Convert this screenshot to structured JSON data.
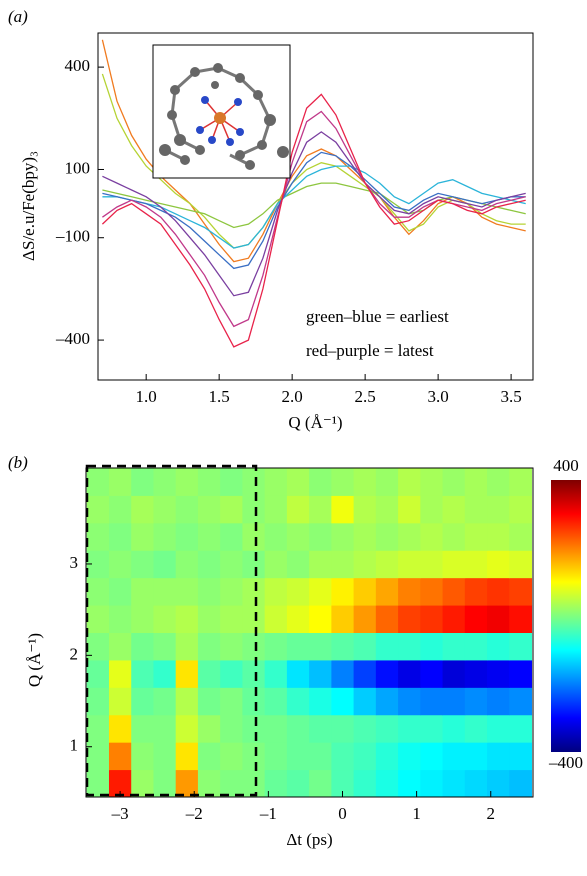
{
  "chart_data": [
    {
      "type": "line",
      "panel_label": "(a)",
      "ylabel": "ΔS/e.u/Fe(bpy)₃",
      "xlabel": "Q (Å⁻¹)",
      "annotations": [
        "green–blue = earliest",
        "red–purple = latest"
      ],
      "xlim": [
        0.67,
        3.65
      ],
      "ylim": [
        -517,
        500
      ],
      "xticks": [
        {
          "value": 1,
          "label": "1.0"
        },
        1.5,
        {
          "value": 2,
          "label": "2.0"
        },
        2.5,
        {
          "value": 3,
          "label": "3.0"
        },
        3.5
      ],
      "yticks": [
        400,
        100,
        {
          "value": -100,
          "label": "–100"
        },
        {
          "value": -400,
          "label": "–400"
        }
      ],
      "x": [
        0.7,
        0.8,
        0.9,
        1.0,
        1.1,
        1.2,
        1.3,
        1.4,
        1.5,
        1.6,
        1.7,
        1.8,
        1.9,
        2.0,
        2.1,
        2.2,
        2.3,
        2.4,
        2.5,
        2.6,
        2.7,
        2.8,
        2.9,
        3.0,
        3.1,
        3.2,
        3.3,
        3.4,
        3.5,
        3.6
      ],
      "series": [
        {
          "color": "#f07b20",
          "values": [
            480,
            300,
            200,
            130,
            80,
            40,
            0,
            -60,
            -120,
            -170,
            -160,
            -90,
            0,
            80,
            140,
            160,
            140,
            100,
            60,
            20,
            -40,
            -90,
            -50,
            0,
            20,
            0,
            -40,
            -60,
            -70,
            -80
          ]
        },
        {
          "color": "#b5d334",
          "values": [
            380,
            250,
            170,
            110,
            70,
            30,
            0,
            -40,
            -90,
            -130,
            -120,
            -70,
            0,
            60,
            100,
            120,
            110,
            80,
            50,
            20,
            -30,
            -80,
            -60,
            -10,
            10,
            0,
            -30,
            -50,
            -60,
            -60
          ]
        },
        {
          "color": "#8dc63f",
          "values": [
            40,
            30,
            20,
            10,
            0,
            -10,
            -20,
            -30,
            -50,
            -70,
            -60,
            -30,
            10,
            30,
            50,
            60,
            60,
            50,
            40,
            30,
            0,
            -30,
            -20,
            10,
            20,
            10,
            0,
            -10,
            -20,
            -30
          ]
        },
        {
          "color": "#2bb4d9",
          "values": [
            20,
            20,
            10,
            0,
            -10,
            -30,
            -50,
            -70,
            -100,
            -130,
            -120,
            -70,
            0,
            40,
            80,
            100,
            110,
            110,
            90,
            60,
            20,
            0,
            30,
            60,
            70,
            50,
            30,
            20,
            10,
            0
          ]
        },
        {
          "color": "#3a6fc4",
          "values": [
            30,
            20,
            10,
            0,
            -20,
            -40,
            -70,
            -110,
            -150,
            -190,
            -180,
            -110,
            -10,
            60,
            120,
            150,
            140,
            110,
            70,
            30,
            -10,
            -20,
            10,
            30,
            20,
            10,
            0,
            10,
            20,
            20
          ]
        },
        {
          "color": "#7a3fa0",
          "values": [
            80,
            60,
            40,
            20,
            -10,
            -50,
            -100,
            -150,
            -210,
            -270,
            -260,
            -160,
            -20,
            90,
            180,
            210,
            180,
            120,
            60,
            20,
            -20,
            -30,
            0,
            20,
            10,
            0,
            -10,
            10,
            20,
            30
          ]
        },
        {
          "color": "#c0398a",
          "values": [
            -40,
            -10,
            10,
            -10,
            -40,
            -90,
            -150,
            -210,
            -290,
            -360,
            -340,
            -210,
            -40,
            120,
            240,
            270,
            220,
            140,
            60,
            0,
            -40,
            -40,
            -10,
            10,
            0,
            -10,
            -20,
            0,
            10,
            20
          ]
        },
        {
          "color": "#e8234a",
          "values": [
            -60,
            -20,
            0,
            -30,
            -60,
            -120,
            -180,
            -250,
            -340,
            -420,
            -400,
            -250,
            -50,
            150,
            280,
            320,
            260,
            160,
            60,
            -10,
            -60,
            -50,
            -20,
            10,
            0,
            -20,
            -30,
            -10,
            0,
            10
          ]
        }
      ]
    },
    {
      "type": "heatmap",
      "panel_label": "(b)",
      "xlabel": "Δt (ps)",
      "ylabel": "Q (Å⁻¹)",
      "colormap": "jet",
      "xlim": [
        -3.46,
        2.57
      ],
      "ylim": [
        0.45,
        4.05
      ],
      "xticks": [
        {
          "value": -3,
          "label": "–3"
        },
        {
          "value": -2,
          "label": "–2"
        },
        {
          "value": -1,
          "label": "–1"
        },
        0,
        1,
        2
      ],
      "yticks": [
        1,
        2,
        3
      ],
      "zlim": [
        -400,
        400
      ],
      "zticks": [
        400,
        {
          "value": -400,
          "label": "–400"
        }
      ],
      "x": [
        -3.3,
        -3.0,
        -2.7,
        -2.4,
        -2.1,
        -1.8,
        -1.5,
        -1.2,
        -0.9,
        -0.6,
        -0.3,
        0,
        0.3,
        0.6,
        0.9,
        1.2,
        1.5,
        1.8,
        2.1,
        2.4
      ],
      "y": [
        0.6,
        0.9,
        1.2,
        1.5,
        1.8,
        2.1,
        2.4,
        2.7,
        3.0,
        3.3,
        3.6,
        3.9
      ],
      "z": [
        [
          0,
          280,
          20,
          0,
          180,
          10,
          0,
          0,
          -20,
          -30,
          -10,
          -40,
          -60,
          -80,
          -100,
          -110,
          -120,
          -130,
          -140,
          -150
        ],
        [
          0,
          200,
          10,
          0,
          120,
          0,
          10,
          0,
          -10,
          -20,
          -20,
          -40,
          -50,
          -70,
          -90,
          -100,
          -110,
          -110,
          -120,
          -120
        ],
        [
          0,
          120,
          0,
          0,
          60,
          20,
          0,
          -10,
          -10,
          -20,
          -30,
          -30,
          -40,
          -50,
          -60,
          -60,
          -70,
          -60,
          -70,
          -70
        ],
        [
          -10,
          60,
          -20,
          -10,
          40,
          -10,
          0,
          -20,
          -30,
          -60,
          -80,
          -100,
          -140,
          -170,
          -190,
          -200,
          -200,
          -190,
          -200,
          -190
        ],
        [
          -20,
          80,
          -40,
          -60,
          120,
          -30,
          -50,
          -30,
          -60,
          -120,
          -150,
          -200,
          -250,
          -290,
          -320,
          -300,
          -330,
          -320,
          -310,
          -300
        ],
        [
          0,
          20,
          -10,
          0,
          30,
          0,
          10,
          0,
          -10,
          -20,
          -20,
          -30,
          -40,
          -60,
          -60,
          -70,
          -60,
          -60,
          -70,
          -60
        ],
        [
          20,
          10,
          20,
          30,
          40,
          20,
          30,
          30,
          60,
          80,
          100,
          140,
          180,
          220,
          250,
          260,
          280,
          300,
          310,
          290
        ],
        [
          10,
          0,
          20,
          20,
          20,
          10,
          20,
          30,
          50,
          60,
          80,
          110,
          140,
          170,
          200,
          210,
          230,
          250,
          260,
          250
        ],
        [
          0,
          10,
          0,
          -10,
          10,
          0,
          10,
          0,
          20,
          10,
          30,
          30,
          40,
          50,
          60,
          60,
          70,
          70,
          80,
          70
        ],
        [
          10,
          0,
          20,
          10,
          0,
          10,
          0,
          20,
          10,
          20,
          10,
          20,
          30,
          20,
          30,
          40,
          30,
          40,
          40,
          30
        ],
        [
          20,
          10,
          30,
          20,
          10,
          20,
          30,
          10,
          20,
          50,
          30,
          90,
          40,
          30,
          60,
          30,
          40,
          30,
          30,
          40
        ],
        [
          10,
          20,
          0,
          10,
          20,
          10,
          0,
          10,
          20,
          30,
          10,
          20,
          30,
          20,
          40,
          30,
          20,
          30,
          20,
          30
        ]
      ]
    }
  ]
}
